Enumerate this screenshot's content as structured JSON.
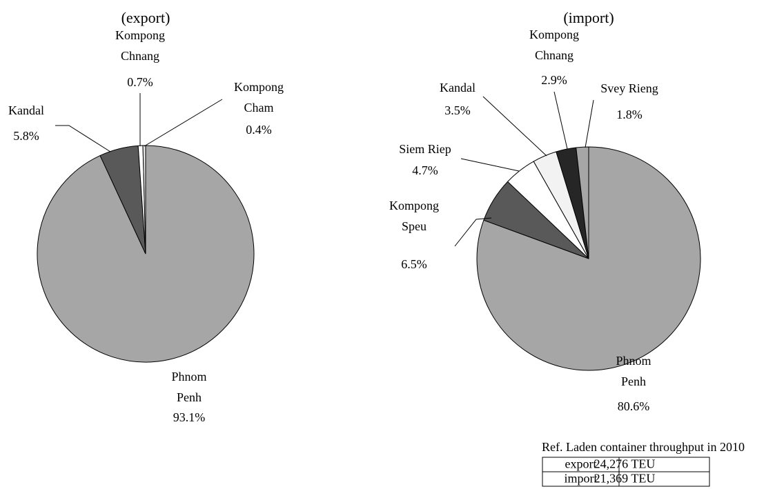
{
  "chart_data": [
    {
      "type": "pie",
      "title": "(export)",
      "categories": [
        "Phnom Penh",
        "Kandal",
        "Kompong Chnang",
        "Kompong Cham"
      ],
      "values": [
        93.1,
        5.8,
        0.7,
        0.4
      ],
      "value_labels": [
        "93.1%",
        "5.8%",
        "0.7%",
        "0.4%"
      ],
      "colors": [
        "#a6a6a6",
        "#595959",
        "#ffffff",
        "#e6e6e6"
      ]
    },
    {
      "type": "pie",
      "title": "(import)",
      "categories": [
        "Phnom Penh",
        "Kompong Speu",
        "Siem Riep",
        "Kandal",
        "Kompong Chnang",
        "Svey Rieng"
      ],
      "values": [
        80.6,
        6.5,
        4.7,
        3.5,
        2.9,
        1.8
      ],
      "value_labels": [
        "80.6%",
        "6.5%",
        "4.7%",
        "3.5%",
        "2.9%",
        "1.8%"
      ],
      "colors": [
        "#a6a6a6",
        "#595959",
        "#ffffff",
        "#f2f2f2",
        "#262626",
        "#a6a6a6"
      ]
    }
  ],
  "table": {
    "title": "Ref. Laden container throughput in 2010",
    "rows": [
      [
        "export",
        "24,276 TEU"
      ],
      [
        "import",
        "21,369 TEU"
      ]
    ]
  }
}
